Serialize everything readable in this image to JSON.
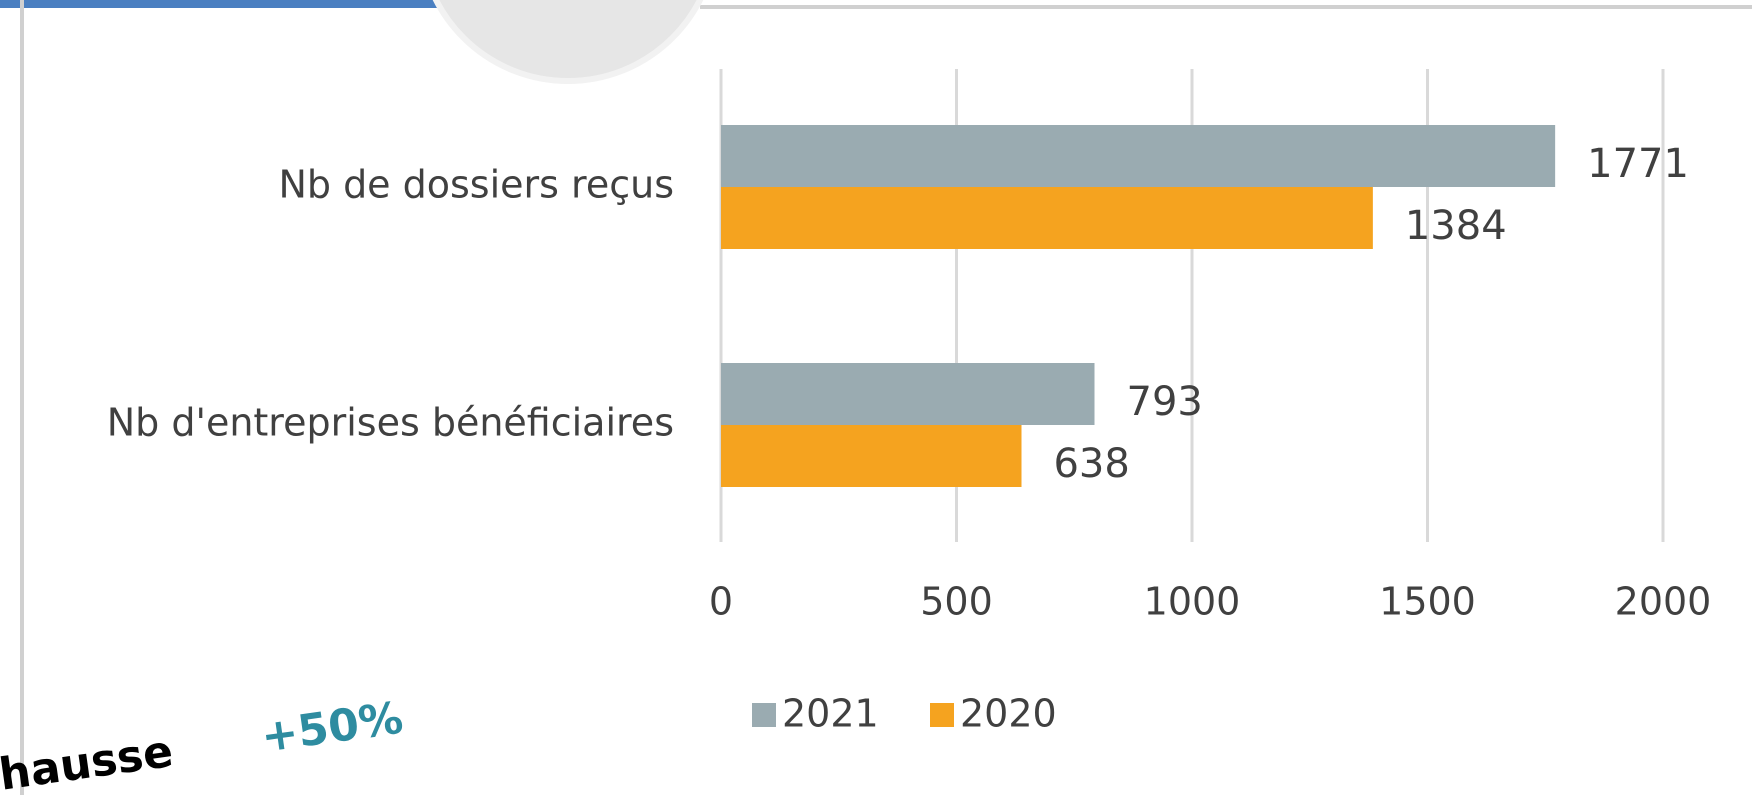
{
  "chart_data": {
    "type": "bar",
    "orientation": "horizontal",
    "categories": [
      "Nb de dossiers reçus",
      "Nb d'entreprises bénéficiaires"
    ],
    "series": [
      {
        "name": "2021",
        "color": "#9aabb1",
        "values": [
          1771,
          793
        ]
      },
      {
        "name": "2020",
        "color": "#f5a31f",
        "values": [
          1384,
          638
        ]
      }
    ],
    "xlim": [
      0,
      2000
    ],
    "xticks": [
      0,
      500,
      1000,
      1500,
      2000
    ],
    "grid": true,
    "legend": "bottom",
    "annotations": [
      "hausse",
      "+50%"
    ]
  }
}
